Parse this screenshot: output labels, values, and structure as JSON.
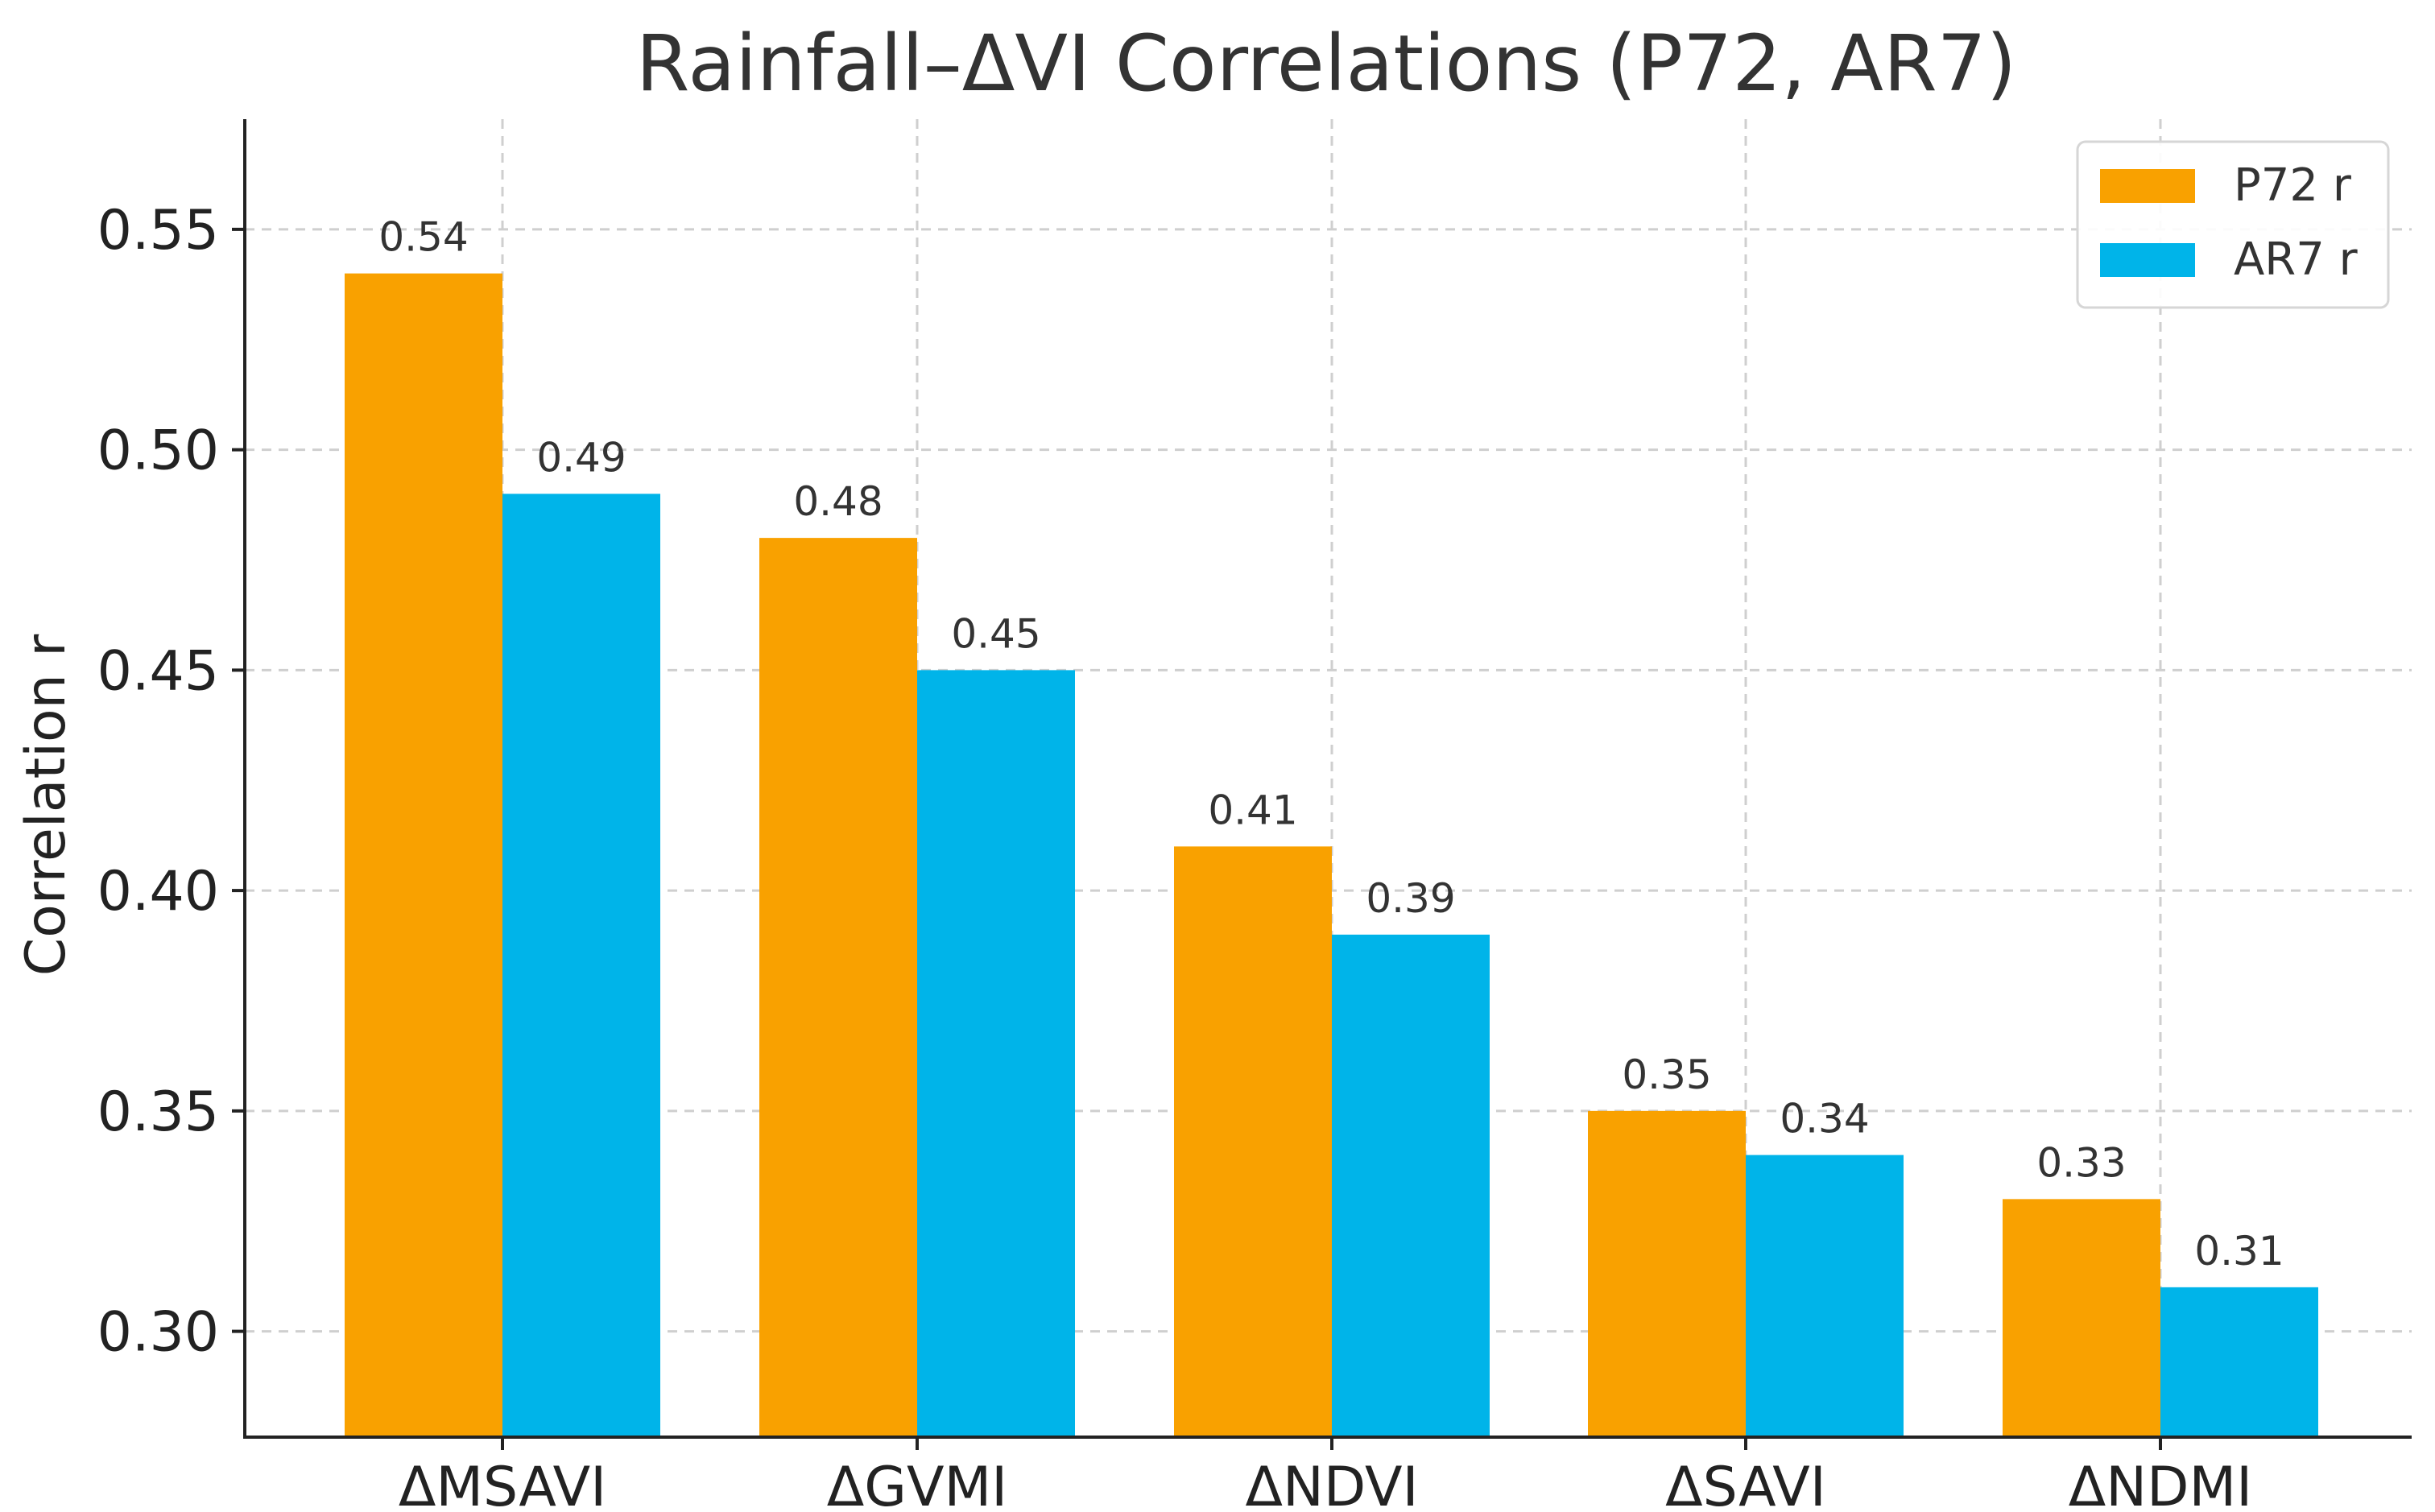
{
  "chart_data": {
    "type": "bar",
    "title": "Rainfall–ΔVI Correlations (P72, AR7)",
    "xlabel": "",
    "ylabel": "Correlation r",
    "ylim": [
      0.276,
      0.575
    ],
    "yticks": [
      "0.30",
      "0.35",
      "0.40",
      "0.45",
      "0.50",
      "0.55"
    ],
    "grid": true,
    "legend_position": "top-right",
    "categories": [
      "ΔMSAVI",
      "ΔGVMI",
      "ΔNDVI",
      "ΔSAVI",
      "ΔNDMI"
    ],
    "series": [
      {
        "name": "P72 r",
        "color": "#F9A100",
        "values": [
          0.54,
          0.48,
          0.41,
          0.35,
          0.33
        ],
        "labels": [
          "0.54",
          "0.48",
          "0.41",
          "0.35",
          "0.33"
        ]
      },
      {
        "name": "AR7 r",
        "color": "#00B4E9",
        "values": [
          0.49,
          0.45,
          0.39,
          0.34,
          0.31
        ],
        "labels": [
          "0.49",
          "0.45",
          "0.39",
          "0.34",
          "0.31"
        ]
      }
    ]
  }
}
